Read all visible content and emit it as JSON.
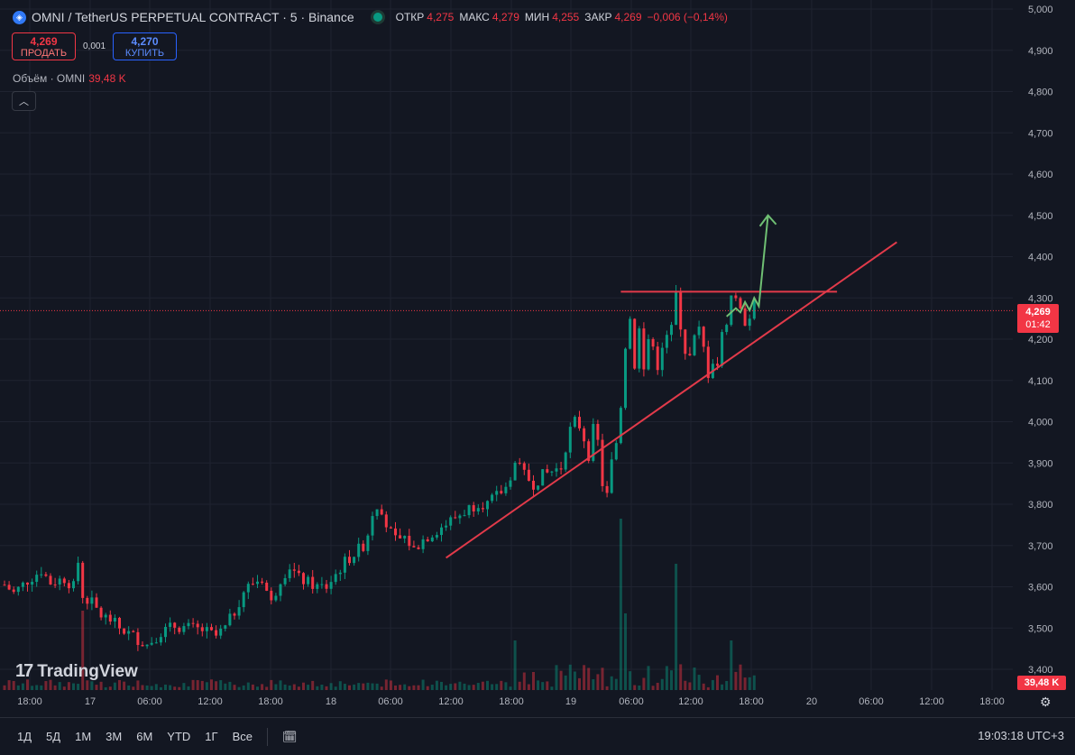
{
  "header": {
    "symbol_title": "OMNI / TetherUS PERPETUAL CONTRACT · 5 · Binance",
    "symbol_icon": "omni-logo-icon",
    "ohlc": [
      {
        "key": "ОТКР",
        "value": "4,275"
      },
      {
        "key": "МАКС",
        "value": "4,279"
      },
      {
        "key": "МИН",
        "value": "4,255"
      },
      {
        "key": "ЗАКР",
        "value": "4,269"
      },
      {
        "key": "",
        "value": "−0,006 (−0,14%)"
      }
    ]
  },
  "trade": {
    "sell_price": "4,269",
    "sell_label": "ПРОДАТЬ",
    "spread": "0,001",
    "buy_price": "4,270",
    "buy_label": "КУПИТЬ"
  },
  "volume": {
    "name": "Объём · OMNI",
    "value": "39,48 K"
  },
  "collapse_icon": "chevron-up-icon",
  "price_axis": {
    "ticks": [
      "5,000",
      "4,900",
      "4,800",
      "4,700",
      "4,600",
      "4,500",
      "4,400",
      "4,300",
      "4,200",
      "4,100",
      "4,000",
      "3,900",
      "3,800",
      "3,700",
      "3,600",
      "3,500",
      "3,400"
    ],
    "last_price": "4,269",
    "countdown": "01:42",
    "volume_tag": "39,48 K"
  },
  "time_axis": {
    "labels": [
      "18:00",
      "17",
      "06:00",
      "12:00",
      "18:00",
      "18",
      "06:00",
      "12:00",
      "18:00",
      "19",
      "06:00",
      "12:00",
      "18:00",
      "20",
      "06:00",
      "12:00",
      "18:00"
    ]
  },
  "bottom_bar": {
    "timeframes": [
      "1Д",
      "5Д",
      "1М",
      "3М",
      "6М",
      "YTD",
      "1Г",
      "Все"
    ],
    "clock": "19:03:18 UTC+3"
  },
  "branding": {
    "name": "TradingView"
  },
  "colors": {
    "up": "#089981",
    "down": "#f23645",
    "background": "#131722",
    "projection": "#6fbf73"
  },
  "chart_data": {
    "type": "candlestick",
    "y_range": [
      3370,
      5020
    ],
    "last_price": 4.269,
    "close_path": [
      [
        0,
        3.605
      ],
      [
        2,
        3.585
      ],
      [
        5,
        3.615
      ],
      [
        8,
        3.64
      ],
      [
        10,
        3.61
      ],
      [
        13,
        3.62
      ],
      [
        15,
        3.6
      ],
      [
        16,
        3.66
      ],
      [
        17,
        3.58
      ],
      [
        19,
        3.56
      ],
      [
        21,
        3.53
      ],
      [
        23,
        3.52
      ],
      [
        25,
        3.5
      ],
      [
        28,
        3.48
      ],
      [
        31,
        3.46
      ],
      [
        34,
        3.49
      ],
      [
        37,
        3.505
      ],
      [
        40,
        3.5
      ],
      [
        43,
        3.495
      ],
      [
        46,
        3.48
      ],
      [
        48,
        3.5
      ],
      [
        50,
        3.54
      ],
      [
        52,
        3.59
      ],
      [
        54,
        3.61
      ],
      [
        56,
        3.62
      ],
      [
        58,
        3.56
      ],
      [
        60,
        3.62
      ],
      [
        62,
        3.65
      ],
      [
        64,
        3.62
      ],
      [
        66,
        3.61
      ],
      [
        68,
        3.6
      ],
      [
        70,
        3.6
      ],
      [
        72,
        3.63
      ],
      [
        74,
        3.66
      ],
      [
        76,
        3.68
      ],
      [
        78,
        3.7
      ],
      [
        79,
        3.73
      ],
      [
        80,
        3.78
      ],
      [
        81,
        3.8
      ],
      [
        82,
        3.79
      ],
      [
        83,
        3.75
      ],
      [
        85,
        3.71
      ],
      [
        87,
        3.72
      ],
      [
        89,
        3.69
      ],
      [
        91,
        3.715
      ],
      [
        93,
        3.73
      ],
      [
        95,
        3.745
      ],
      [
        97,
        3.76
      ],
      [
        99,
        3.775
      ],
      [
        101,
        3.79
      ],
      [
        103,
        3.805
      ],
      [
        105,
        3.8
      ],
      [
        107,
        3.82
      ],
      [
        109,
        3.84
      ],
      [
        111,
        3.9
      ],
      [
        113,
        3.87
      ],
      [
        115,
        3.85
      ],
      [
        117,
        3.87
      ],
      [
        119,
        3.88
      ],
      [
        121,
        3.89
      ],
      [
        122,
        3.94
      ],
      [
        123,
        3.98
      ],
      [
        124,
        4.0
      ],
      [
        125,
        3.99
      ],
      [
        126,
        3.96
      ],
      [
        127,
        3.92
      ],
      [
        128,
        3.98
      ],
      [
        129,
        3.95
      ],
      [
        130,
        3.85
      ],
      [
        131,
        3.82
      ],
      [
        132,
        3.9
      ],
      [
        133,
        3.95
      ],
      [
        134,
        4.05
      ],
      [
        135,
        4.2
      ],
      [
        136,
        4.25
      ],
      [
        137,
        4.15
      ],
      [
        138,
        4.22
      ],
      [
        139,
        4.12
      ],
      [
        140,
        4.2
      ],
      [
        141,
        4.18
      ],
      [
        142,
        4.15
      ],
      [
        143,
        4.16
      ],
      [
        144,
        4.2
      ],
      [
        145,
        4.22
      ],
      [
        146,
        4.3
      ],
      [
        147,
        4.25
      ],
      [
        148,
        4.18
      ],
      [
        149,
        4.15
      ],
      [
        150,
        4.19
      ],
      [
        151,
        4.21
      ],
      [
        152,
        4.17
      ],
      [
        153,
        4.13
      ],
      [
        154,
        4.16
      ],
      [
        155,
        4.14
      ],
      [
        156,
        4.2
      ],
      [
        157,
        4.26
      ],
      [
        158,
        4.3
      ],
      [
        159,
        4.27
      ],
      [
        160,
        4.25
      ],
      [
        161,
        4.26
      ],
      [
        162,
        4.275
      ],
      [
        163,
        4.269
      ]
    ],
    "volume_spikes": [
      [
        17,
        88
      ],
      [
        85,
        5
      ],
      [
        111,
        55
      ],
      [
        134,
        190
      ],
      [
        135,
        85
      ],
      [
        146,
        140
      ],
      [
        158,
        55
      ]
    ]
  },
  "drawings": {
    "support_trendline": [
      [
        96,
        3.67
      ],
      [
        194,
        4.435
      ]
    ],
    "resistance_line": [
      [
        134,
        4.315
      ],
      [
        181,
        4.315
      ]
    ],
    "projection_path": [
      [
        157,
        4.255
      ],
      [
        159,
        4.275
      ],
      [
        160,
        4.265
      ],
      [
        161,
        4.29
      ],
      [
        162,
        4.27
      ],
      [
        163,
        4.3
      ],
      [
        164,
        4.28
      ],
      [
        166,
        4.5
      ]
    ]
  }
}
